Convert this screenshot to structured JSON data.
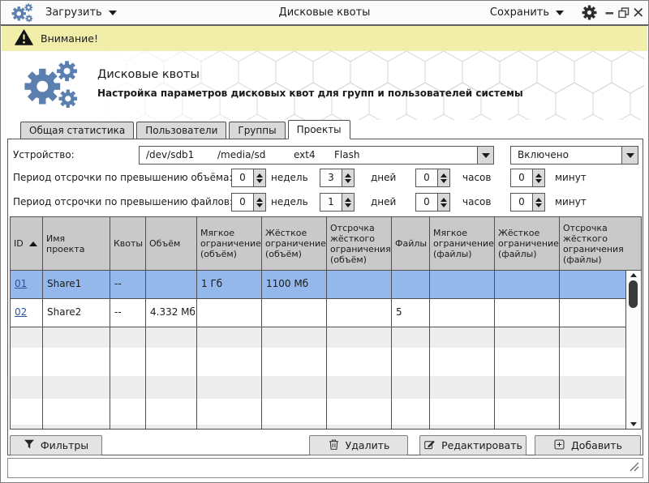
{
  "titlebar": {
    "load_label": "Загрузить",
    "app_title": "Дисковые квоты",
    "save_label": "Сохранить"
  },
  "warning": {
    "text": "Внимание!"
  },
  "header": {
    "title": "Дисковые квоты",
    "subtitle": "Настройка параметров дисковых квот для групп и пользователей системы"
  },
  "tabs": [
    {
      "label": "Общая статистика",
      "active": false
    },
    {
      "label": "Пользователи",
      "active": false
    },
    {
      "label": "Группы",
      "active": false
    },
    {
      "label": "Проекты",
      "active": true
    }
  ],
  "device": {
    "label": "Устройство:",
    "path": "/dev/sdb1",
    "mount": "/media/sd",
    "fs": "ext4",
    "disk_label": "Flash",
    "status": "Включено"
  },
  "grace": {
    "volume": {
      "label": "Период отсрочки по превышению объёма:",
      "weeks": "0",
      "days": "3",
      "hours": "0",
      "minutes": "0"
    },
    "files": {
      "label": "Период отсрочки по превышению файлов:",
      "weeks": "0",
      "days": "1",
      "hours": "0",
      "minutes": "0"
    },
    "units": {
      "weeks": "недель",
      "days": "дней",
      "hours": "часов",
      "minutes": "минут"
    }
  },
  "table": {
    "columns": [
      "ID",
      "Имя проекта",
      "Квоты",
      "Объём",
      "Мягкое ограничение (объём)",
      "Жёсткое ограничение (объём)",
      "Отсрочка жёсткого ограничения (объём)",
      "Файлы",
      "Мягкое ограничение (файлы)",
      "Жёсткое ограничение (файлы)",
      "Отсрочка жёсткого ограничения (файлы)"
    ],
    "sort": {
      "column": "ID",
      "direction": "asc"
    },
    "rows": [
      {
        "id": "01",
        "name": "Share1",
        "quotas": "--",
        "volume": "",
        "soft_vol": "1 Гб",
        "hard_vol": "1100 Мб",
        "grace_vol": "",
        "files": "",
        "soft_files": "",
        "hard_files": "",
        "grace_files": "",
        "selected": true
      },
      {
        "id": "02",
        "name": "Share2",
        "quotas": "--",
        "volume": "4.332 Мб",
        "soft_vol": "",
        "hard_vol": "",
        "grace_vol": "",
        "files": "5",
        "soft_files": "",
        "hard_files": "",
        "grace_files": "",
        "selected": false
      }
    ]
  },
  "actions": {
    "filters": "Фильтры",
    "delete": "Удалить",
    "edit": "Редактировать",
    "add": "Добавить"
  },
  "colors": {
    "accent_blue": "#5b7fae",
    "selection_blue": "#94b8ec",
    "warning_yellow": "#f0eea8",
    "table_header_gray": "#c9c9c9"
  },
  "icons": {
    "logo": "gears",
    "toolbar_settings": "gear",
    "warning": "warning-triangle",
    "filters": "funnel",
    "delete": "trash",
    "edit": "pencil-square",
    "add": "plus-square",
    "dropdown": "chevron-down",
    "sort": "triangle-up",
    "window_controls": [
      "minimize",
      "maximize",
      "close"
    ]
  }
}
